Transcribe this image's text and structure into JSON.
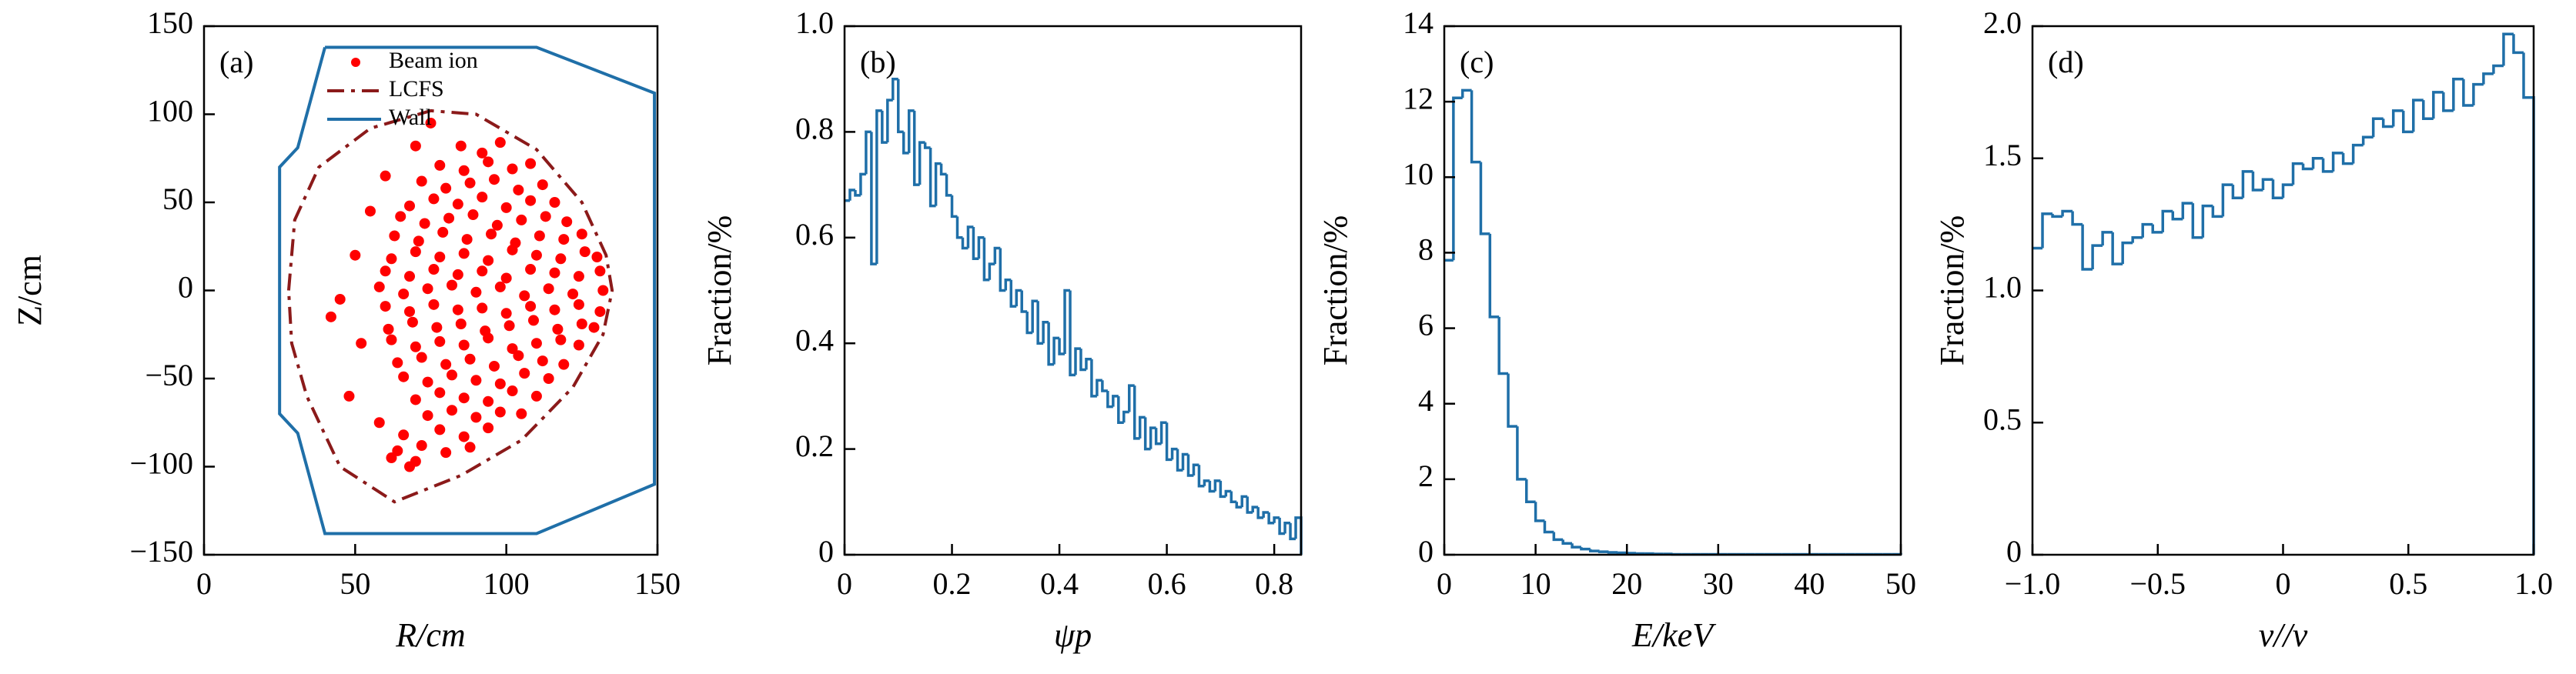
{
  "chart_data": [
    {
      "type": "scatter",
      "annotation": "(a)",
      "xlabel": "R/cm",
      "ylabel": "Z/cm",
      "xlim": [
        0,
        150
      ],
      "ylim": [
        -150,
        150
      ],
      "xticks": [
        0,
        50,
        100,
        150
      ],
      "yticks": [
        {
          "value": -150,
          "label": "−150"
        },
        {
          "value": -100,
          "label": "−100"
        },
        {
          "value": -50,
          "label": "−50"
        },
        0,
        50,
        100,
        150
      ],
      "series": [
        {
          "name": "Beam ion",
          "color": "#ff0000",
          "kind": "points",
          "x": [
            85,
            92,
            98,
            78,
            86,
            94,
            102,
            108,
            72,
            80,
            88,
            96,
            104,
            112,
            68,
            76,
            84,
            92,
            100,
            108,
            116,
            65,
            73,
            81,
            89,
            97,
            105,
            113,
            120,
            63,
            71,
            79,
            87,
            95,
            103,
            111,
            119,
            125,
            62,
            70,
            78,
            86,
            94,
            102,
            110,
            118,
            126,
            130,
            60,
            68,
            76,
            84,
            92,
            100,
            108,
            116,
            124,
            131,
            58,
            66,
            74,
            82,
            90,
            98,
            106,
            114,
            122,
            132,
            60,
            68,
            76,
            84,
            92,
            100,
            108,
            116,
            124,
            131,
            61,
            69,
            77,
            85,
            93,
            101,
            109,
            117,
            125,
            129,
            62,
            70,
            78,
            86,
            94,
            102,
            110,
            118,
            124,
            64,
            72,
            80,
            88,
            96,
            104,
            112,
            119,
            66,
            74,
            82,
            90,
            98,
            106,
            114,
            70,
            78,
            86,
            94,
            102,
            110,
            74,
            82,
            90,
            98,
            105,
            66,
            78,
            86,
            94,
            64,
            72,
            80,
            88,
            55,
            50,
            45,
            52,
            48,
            58,
            62,
            70,
            68,
            42,
            60,
            70,
            75
          ],
          "values": [
            82,
            78,
            84,
            71,
            68,
            73,
            69,
            72,
            62,
            58,
            61,
            63,
            57,
            60,
            48,
            52,
            49,
            53,
            47,
            51,
            50,
            42,
            38,
            41,
            43,
            37,
            40,
            42,
            39,
            31,
            28,
            33,
            29,
            32,
            27,
            31,
            29,
            32,
            18,
            22,
            19,
            21,
            17,
            23,
            20,
            18,
            22,
            19,
            11,
            8,
            12,
            9,
            11,
            7,
            12,
            10,
            8,
            11,
            2,
            -2,
            1,
            3,
            -1,
            2,
            -3,
            1,
            -2,
            0,
            -9,
            -12,
            -8,
            -11,
            -10,
            -13,
            -9,
            -11,
            -8,
            -12,
            -22,
            -18,
            -21,
            -19,
            -23,
            -20,
            -17,
            -22,
            -19,
            -21,
            -28,
            -32,
            -29,
            -31,
            -27,
            -33,
            -30,
            -28,
            -31,
            -41,
            -38,
            -42,
            -39,
            -43,
            -37,
            -40,
            -42,
            -49,
            -52,
            -48,
            -51,
            -53,
            -47,
            -50,
            -62,
            -58,
            -61,
            -63,
            -57,
            -60,
            -71,
            -68,
            -72,
            -69,
            -70,
            -82,
            -79,
            -83,
            -78,
            -91,
            -88,
            -92,
            -89,
            45,
            20,
            -5,
            -30,
            -60,
            -75,
            -95,
            -97,
            -100,
            -15,
            65,
            82,
            95
          ]
        },
        {
          "name": "LCFS",
          "color": "#8b1a1a",
          "kind": "line",
          "linestyle": "dashdot",
          "x": [
            28,
            30,
            38,
            55,
            75,
            90,
            110,
            125,
            133,
            135,
            132,
            122,
            105,
            85,
            63,
            45,
            34,
            29,
            28
          ],
          "values": [
            0,
            40,
            70,
            92,
            102,
            100,
            80,
            50,
            20,
            0,
            -25,
            -55,
            -85,
            -105,
            -120,
            -100,
            -60,
            -30,
            0
          ]
        },
        {
          "name": "Wall",
          "color": "#1f6fa8",
          "kind": "line",
          "linestyle": "solid",
          "x": [
            40,
            110,
            149,
            149,
            110,
            40,
            31,
            25,
            25,
            31,
            40
          ],
          "values": [
            138,
            138,
            112,
            -110,
            -138,
            -138,
            -81,
            -70,
            70,
            81,
            138
          ]
        }
      ]
    },
    {
      "type": "histogram",
      "annotation": "(b)",
      "xlabel": "ψp",
      "ylabel": "Fraction/%",
      "color": "#1f6fa8",
      "xlim": [
        0,
        0.85
      ],
      "ylim": [
        0,
        1
      ],
      "xticks": [
        0,
        0.2,
        0.4,
        0.6,
        0.8
      ],
      "yticks": [
        0,
        0.2,
        0.4,
        0.6,
        0.8,
        {
          "value": 1,
          "label": "1.0"
        }
      ],
      "bins": [
        0,
        0.01,
        0.02,
        0.03,
        0.04,
        0.05,
        0.06,
        0.07,
        0.08,
        0.09,
        0.1,
        0.11,
        0.12,
        0.13,
        0.14,
        0.15,
        0.16,
        0.17,
        0.18,
        0.19,
        0.2,
        0.21,
        0.22,
        0.23,
        0.24,
        0.25,
        0.26,
        0.27,
        0.28,
        0.29,
        0.3,
        0.31,
        0.32,
        0.33,
        0.34,
        0.35,
        0.36,
        0.37,
        0.38,
        0.39,
        0.4,
        0.41,
        0.42,
        0.43,
        0.44,
        0.45,
        0.46,
        0.47,
        0.48,
        0.49,
        0.5,
        0.51,
        0.52,
        0.53,
        0.54,
        0.55,
        0.56,
        0.57,
        0.58,
        0.59,
        0.6,
        0.61,
        0.62,
        0.63,
        0.64,
        0.65,
        0.66,
        0.67,
        0.68,
        0.69,
        0.7,
        0.71,
        0.72,
        0.73,
        0.74,
        0.75,
        0.76,
        0.77,
        0.78,
        0.79,
        0.8,
        0.81,
        0.82,
        0.83,
        0.84,
        0.85
      ],
      "values": [
        0.67,
        0.69,
        0.68,
        0.72,
        0.8,
        0.55,
        0.84,
        0.78,
        0.86,
        0.9,
        0.8,
        0.76,
        0.84,
        0.7,
        0.78,
        0.77,
        0.66,
        0.74,
        0.72,
        0.68,
        0.64,
        0.6,
        0.58,
        0.62,
        0.56,
        0.6,
        0.52,
        0.55,
        0.58,
        0.5,
        0.52,
        0.47,
        0.5,
        0.46,
        0.42,
        0.48,
        0.4,
        0.44,
        0.36,
        0.41,
        0.38,
        0.5,
        0.34,
        0.39,
        0.35,
        0.37,
        0.3,
        0.33,
        0.31,
        0.28,
        0.3,
        0.25,
        0.27,
        0.32,
        0.22,
        0.26,
        0.2,
        0.24,
        0.21,
        0.25,
        0.18,
        0.2,
        0.16,
        0.19,
        0.15,
        0.17,
        0.13,
        0.14,
        0.12,
        0.14,
        0.11,
        0.12,
        0.1,
        0.09,
        0.11,
        0.08,
        0.09,
        0.07,
        0.08,
        0.06,
        0.07,
        0.04,
        0.06,
        0.03,
        0.07
      ]
    },
    {
      "type": "histogram",
      "annotation": "(c)",
      "xlabel": "E/keV",
      "ylabel": "Fraction/%",
      "color": "#1f6fa8",
      "xlim": [
        0,
        50
      ],
      "ylim": [
        0,
        14
      ],
      "xticks": [
        0,
        10,
        20,
        30,
        40,
        50
      ],
      "yticks": [
        0,
        2,
        4,
        6,
        8,
        10,
        12,
        14
      ],
      "bins": [
        0,
        1,
        2,
        3,
        4,
        5,
        6,
        7,
        8,
        9,
        10,
        11,
        12,
        13,
        14,
        15,
        16,
        17,
        18,
        19,
        20,
        21,
        22,
        23,
        24,
        25,
        26,
        27,
        28,
        29,
        30,
        31,
        32,
        33,
        34,
        35,
        36,
        37,
        38,
        39,
        40,
        41,
        42,
        43,
        44,
        45,
        46,
        47,
        48,
        49,
        50
      ],
      "values": [
        7.8,
        12.1,
        12.3,
        10.4,
        8.5,
        6.3,
        4.8,
        3.4,
        2.0,
        1.4,
        0.9,
        0.6,
        0.4,
        0.3,
        0.2,
        0.15,
        0.1,
        0.08,
        0.06,
        0.05,
        0.04,
        0.03,
        0.03,
        0.02,
        0.02,
        0.01,
        0.01,
        0.01,
        0.01,
        0.01,
        0.01,
        0.01,
        0.01,
        0.01,
        0.01,
        0.01,
        0.01,
        0.01,
        0.01,
        0.01,
        0.01,
        0.01,
        0.01,
        0.01,
        0.01,
        0.01,
        0.01,
        0.01,
        0.01,
        0.01
      ]
    },
    {
      "type": "histogram",
      "annotation": "(d)",
      "xlabel": "v//v",
      "ylabel": "Fraction/%",
      "color": "#1f6fa8",
      "xlim": [
        -1,
        1
      ],
      "ylim": [
        0,
        2
      ],
      "xticks": [
        {
          "value": -1,
          "label": "−1.0"
        },
        {
          "value": -0.5,
          "label": "−0.5"
        },
        0,
        0.5,
        {
          "value": 1,
          "label": "1.0"
        }
      ],
      "yticks": [
        0,
        0.5,
        {
          "value": 1,
          "label": "1.0"
        },
        1.5,
        {
          "value": 2,
          "label": "2.0"
        }
      ],
      "bins": [
        -1,
        -0.96,
        -0.92,
        -0.88,
        -0.84,
        -0.8,
        -0.76,
        -0.72,
        -0.68,
        -0.64,
        -0.6,
        -0.56,
        -0.52,
        -0.48,
        -0.44,
        -0.4,
        -0.36,
        -0.32,
        -0.28,
        -0.24,
        -0.2,
        -0.16,
        -0.12,
        -0.08,
        -0.04,
        0,
        0.04,
        0.08,
        0.12,
        0.16,
        0.2,
        0.24,
        0.28,
        0.32,
        0.36,
        0.4,
        0.44,
        0.48,
        0.52,
        0.56,
        0.6,
        0.64,
        0.68,
        0.72,
        0.76,
        0.8,
        0.84,
        0.88,
        0.92,
        0.96,
        1
      ],
      "values": [
        1.16,
        1.29,
        1.28,
        1.3,
        1.25,
        1.08,
        1.17,
        1.22,
        1.1,
        1.18,
        1.2,
        1.25,
        1.22,
        1.3,
        1.27,
        1.33,
        1.2,
        1.32,
        1.28,
        1.4,
        1.35,
        1.45,
        1.38,
        1.42,
        1.35,
        1.4,
        1.48,
        1.46,
        1.5,
        1.45,
        1.52,
        1.48,
        1.55,
        1.58,
        1.65,
        1.62,
        1.68,
        1.6,
        1.72,
        1.65,
        1.75,
        1.68,
        1.8,
        1.7,
        1.78,
        1.82,
        1.85,
        1.97,
        1.9,
        1.73
      ]
    }
  ]
}
